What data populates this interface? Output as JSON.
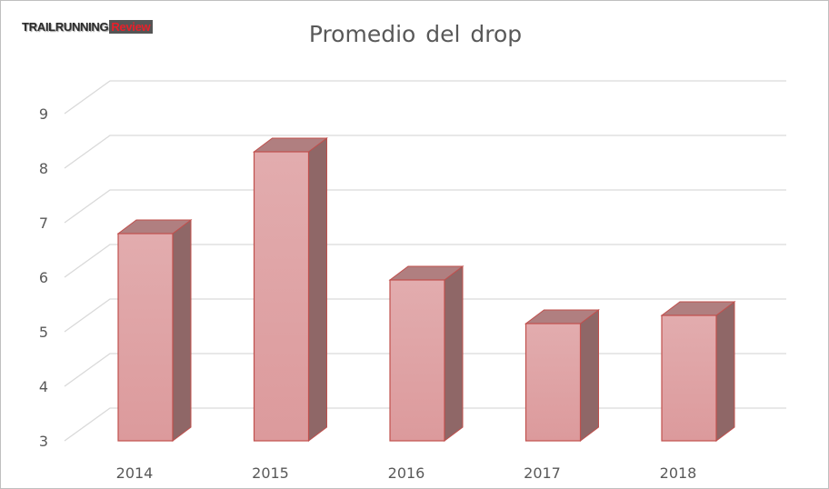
{
  "logo": {
    "part1": "TRAILRUNNING",
    "part2": "Review"
  },
  "colors": {
    "bar_front": "#dc9a9c",
    "bar_side": "#8f6767",
    "bar_top": "#b07f80",
    "bar_edge": "#c0504d",
    "grid": "#d9d9d9"
  },
  "chart_data": {
    "type": "bar",
    "title": "Promedio  del drop",
    "categories": [
      "2014",
      "2015",
      "2016",
      "2017",
      "2018"
    ],
    "values": [
      6.8,
      8.3,
      5.95,
      5.15,
      5.3
    ],
    "ylim": [
      3,
      9
    ],
    "yticks": [
      "3",
      "4",
      "5",
      "6",
      "7",
      "8",
      "9"
    ],
    "xlabel": "",
    "ylabel": "",
    "grid": true,
    "style": "3d"
  }
}
